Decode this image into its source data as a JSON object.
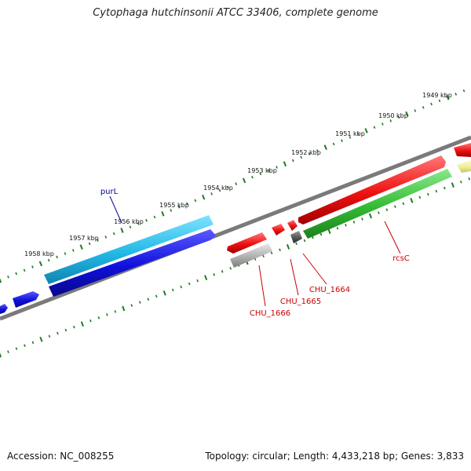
{
  "title": "Cytophaga hutchinsonii ATCC 33406, complete genome",
  "footer": {
    "accession": "Accession: NC_008255",
    "summary": "Topology: circular; Length: 4,433,218 bp; Genes: 3,833"
  },
  "scale_labels": [
    "1949 kbp",
    "1950 kbp",
    "1951 kbp",
    "1952 kbp",
    "1953 kbp",
    "1954 kbp",
    "1955 kbp",
    "1956 kbp",
    "1957 kbp",
    "1958 kbp"
  ],
  "gene_labels": [
    "purL",
    "CHU_1666",
    "CHU_1665",
    "CHU_1664",
    "rcsC"
  ],
  "colors": {
    "backbone": "#7a7a7a",
    "ticks": "#1f7a1f",
    "cyan_gene": "#22b8e6",
    "blue_gene": "#1010dd",
    "red_gene": "#ee1111",
    "green_gene": "#33bb33",
    "gray_gene": "#b0b0b0",
    "dark_gene": "#555555",
    "yellow_gene": "#eeee99",
    "purl_label": "#000099",
    "red_label": "#cc0000"
  }
}
